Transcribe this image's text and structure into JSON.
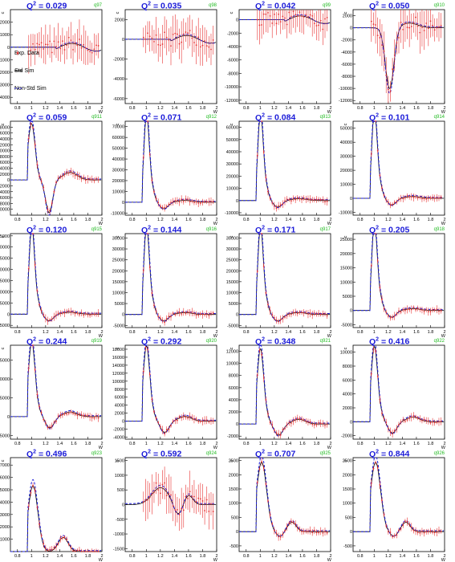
{
  "figure": {
    "x_axis_label": "W",
    "y_axis_label": "c"
  },
  "legend": {
    "items": [
      {
        "label": "Exp. Data",
        "style": "points",
        "color": "#e83030"
      },
      {
        "label": "Std Sim",
        "style": "solid",
        "color": "#000000"
      },
      {
        "label": "Non-Std Sim",
        "style": "dashed",
        "color": "#1a1ad8"
      }
    ]
  },
  "colors": {
    "data": "#e83030",
    "std": "#000000",
    "nonstd": "#1a1ad8",
    "title": "#1a1ad8",
    "hist_id": "#22bb22"
  },
  "chart_data": [
    {
      "type": "line",
      "q2_label": "0.029",
      "hist_id": "q97",
      "xlim": [
        0.7,
        2.0
      ],
      "ylim": [
        -4500,
        3000
      ],
      "yticks": [
        -4000,
        -3000,
        -2000,
        -1000,
        0,
        1000,
        2000
      ],
      "shape": "lowq"
    },
    {
      "type": "line",
      "q2_label": "0.035",
      "hist_id": "q98",
      "xlim": [
        0.7,
        2.0
      ],
      "ylim": [
        -6500,
        3000
      ],
      "yticks": [
        -6000,
        -4000,
        -2000,
        0,
        2000
      ],
      "shape": "lowq"
    },
    {
      "type": "line",
      "q2_label": "0.042",
      "hist_id": "q99",
      "xlim": [
        0.7,
        2.0
      ],
      "ylim": [
        -12500,
        1500
      ],
      "yticks": [
        -12000,
        -10000,
        -8000,
        -6000,
        -4000,
        -2000,
        0
      ],
      "shape": "lowq"
    },
    {
      "type": "line",
      "q2_label": "0.050",
      "hist_id": "q910",
      "xlim": [
        0.7,
        2.0
      ],
      "ylim": [
        -12500,
        3000
      ],
      "yticks": [
        -12000,
        -10000,
        -8000,
        -6000,
        -4000,
        -2000,
        0,
        2000
      ],
      "shape": "dip"
    },
    {
      "type": "line",
      "q2_label": "0.059",
      "hist_id": "q911",
      "xlim": [
        0.7,
        2.0
      ],
      "ylim": [
        -12000,
        20000
      ],
      "yticks": [
        -10000,
        -8000,
        -6000,
        -4000,
        -2000,
        0,
        2000,
        4000,
        6000,
        8000,
        10000,
        12000,
        14000,
        16000,
        18000
      ],
      "shape": "peakdip"
    },
    {
      "type": "line",
      "q2_label": "0.071",
      "hist_id": "q912",
      "xlim": [
        0.7,
        2.0
      ],
      "ylim": [
        -12000,
        75000
      ],
      "yticks": [
        -10000,
        0,
        10000,
        20000,
        30000,
        40000,
        50000,
        60000,
        70000
      ],
      "shape": "peak"
    },
    {
      "type": "line",
      "q2_label": "0.084",
      "hist_id": "q913",
      "xlim": [
        0.7,
        2.0
      ],
      "ylim": [
        -12000,
        65000
      ],
      "yticks": [
        -10000,
        0,
        10000,
        20000,
        30000,
        40000,
        50000,
        60000
      ],
      "shape": "peak"
    },
    {
      "type": "line",
      "q2_label": "0.101",
      "hist_id": "q914",
      "xlim": [
        0.7,
        2.0
      ],
      "ylim": [
        -12000,
        55000
      ],
      "yticks": [
        -10000,
        0,
        10000,
        20000,
        30000,
        40000,
        50000
      ],
      "shape": "peak"
    },
    {
      "type": "line",
      "q2_label": "0.120",
      "hist_id": "q915",
      "xlim": [
        0.7,
        2.0
      ],
      "ylim": [
        -6000,
        36000
      ],
      "yticks": [
        -5000,
        0,
        5000,
        10000,
        15000,
        20000,
        25000,
        30000,
        35000
      ],
      "shape": "peak"
    },
    {
      "type": "line",
      "q2_label": "0.144",
      "hist_id": "q916",
      "xlim": [
        0.7,
        2.0
      ],
      "ylim": [
        -6000,
        37000
      ],
      "yticks": [
        -5000,
        0,
        5000,
        10000,
        15000,
        20000,
        25000,
        30000,
        35000
      ],
      "shape": "peak"
    },
    {
      "type": "line",
      "q2_label": "0.171",
      "hist_id": "q917",
      "xlim": [
        0.7,
        2.0
      ],
      "ylim": [
        -6000,
        37000
      ],
      "yticks": [
        -5000,
        0,
        5000,
        10000,
        15000,
        20000,
        25000,
        30000,
        35000
      ],
      "shape": "peak"
    },
    {
      "type": "line",
      "q2_label": "0.205",
      "hist_id": "q918",
      "xlim": [
        0.7,
        2.0
      ],
      "ylim": [
        -6000,
        27000
      ],
      "yticks": [
        -5000,
        0,
        5000,
        10000,
        15000,
        20000,
        25000
      ],
      "shape": "peak"
    },
    {
      "type": "line",
      "q2_label": "0.244",
      "hist_id": "q919",
      "xlim": [
        0.7,
        2.0
      ],
      "ylim": [
        -6000,
        19000
      ],
      "yticks": [
        -5000,
        0,
        5000,
        10000,
        15000
      ],
      "shape": "broad"
    },
    {
      "type": "line",
      "q2_label": "0.292",
      "hist_id": "q920",
      "xlim": [
        0.7,
        2.0
      ],
      "ylim": [
        -4500,
        19000
      ],
      "yticks": [
        -4000,
        -2000,
        0,
        2000,
        4000,
        6000,
        8000,
        10000,
        12000,
        14000,
        16000,
        18000
      ],
      "shape": "broad"
    },
    {
      "type": "line",
      "q2_label": "0.348",
      "hist_id": "q921",
      "xlim": [
        0.7,
        2.0
      ],
      "ylim": [
        -2500,
        13000
      ],
      "yticks": [
        -2000,
        0,
        2000,
        4000,
        6000,
        8000,
        10000,
        12000
      ],
      "shape": "broad"
    },
    {
      "type": "line",
      "q2_label": "0.416",
      "hist_id": "q922",
      "xlim": [
        0.7,
        2.0
      ],
      "ylim": [
        -2500,
        11000
      ],
      "yticks": [
        -2000,
        0,
        2000,
        4000,
        6000,
        8000,
        10000
      ],
      "shape": "broad"
    },
    {
      "type": "line",
      "q2_label": "0.496",
      "hist_id": "q923",
      "xlim": [
        0.7,
        2.0
      ],
      "ylim": [
        0,
        7600
      ],
      "yticks": [
        1000,
        2000,
        3000,
        4000,
        5000,
        6000,
        7000
      ],
      "shape": "twobump"
    },
    {
      "type": "line",
      "q2_label": "0.592",
      "hist_id": "q924",
      "xlim": [
        0.7,
        2.0
      ],
      "ylim": [
        -1600,
        1600
      ],
      "yticks": [
        -1500,
        -1000,
        -500,
        0,
        500,
        1000,
        1500
      ],
      "shape": "noisy"
    },
    {
      "type": "line",
      "q2_label": "0.707",
      "hist_id": "q925",
      "xlim": [
        0.7,
        2.0
      ],
      "ylim": [
        -700,
        2600
      ],
      "yticks": [
        -500,
        0,
        500,
        1000,
        1500,
        2000,
        2500
      ],
      "shape": "broad2"
    },
    {
      "type": "line",
      "q2_label": "0.844",
      "hist_id": "q926",
      "xlim": [
        0.7,
        2.0
      ],
      "ylim": [
        -700,
        2600
      ],
      "yticks": [
        -500,
        0,
        500,
        1000,
        1500,
        2000,
        2500
      ],
      "shape": "broad2"
    }
  ]
}
